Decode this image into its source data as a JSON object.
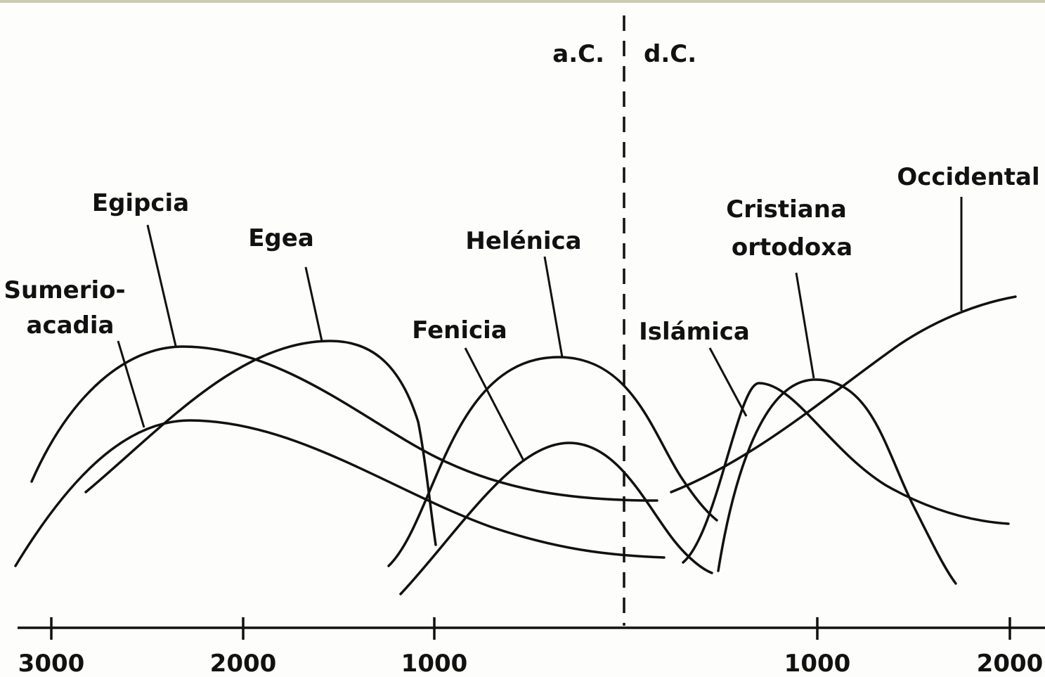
{
  "eras": {
    "before": "a.C.",
    "after": "d.C."
  },
  "axis": {
    "ticks": [
      "3000",
      "2000",
      "1000",
      "1000",
      "2000"
    ]
  },
  "civilizations": [
    {
      "lines": [
        "Sumerio-",
        "acadia"
      ]
    },
    {
      "lines": [
        "Egipcia"
      ]
    },
    {
      "lines": [
        "Egea"
      ]
    },
    {
      "lines": [
        "Fenicia"
      ]
    },
    {
      "lines": [
        "Helénica"
      ]
    },
    {
      "lines": [
        "Islámica"
      ]
    },
    {
      "lines": [
        "Cristiana",
        "ortodoxa"
      ]
    },
    {
      "lines": [
        "Occidental"
      ]
    }
  ]
}
